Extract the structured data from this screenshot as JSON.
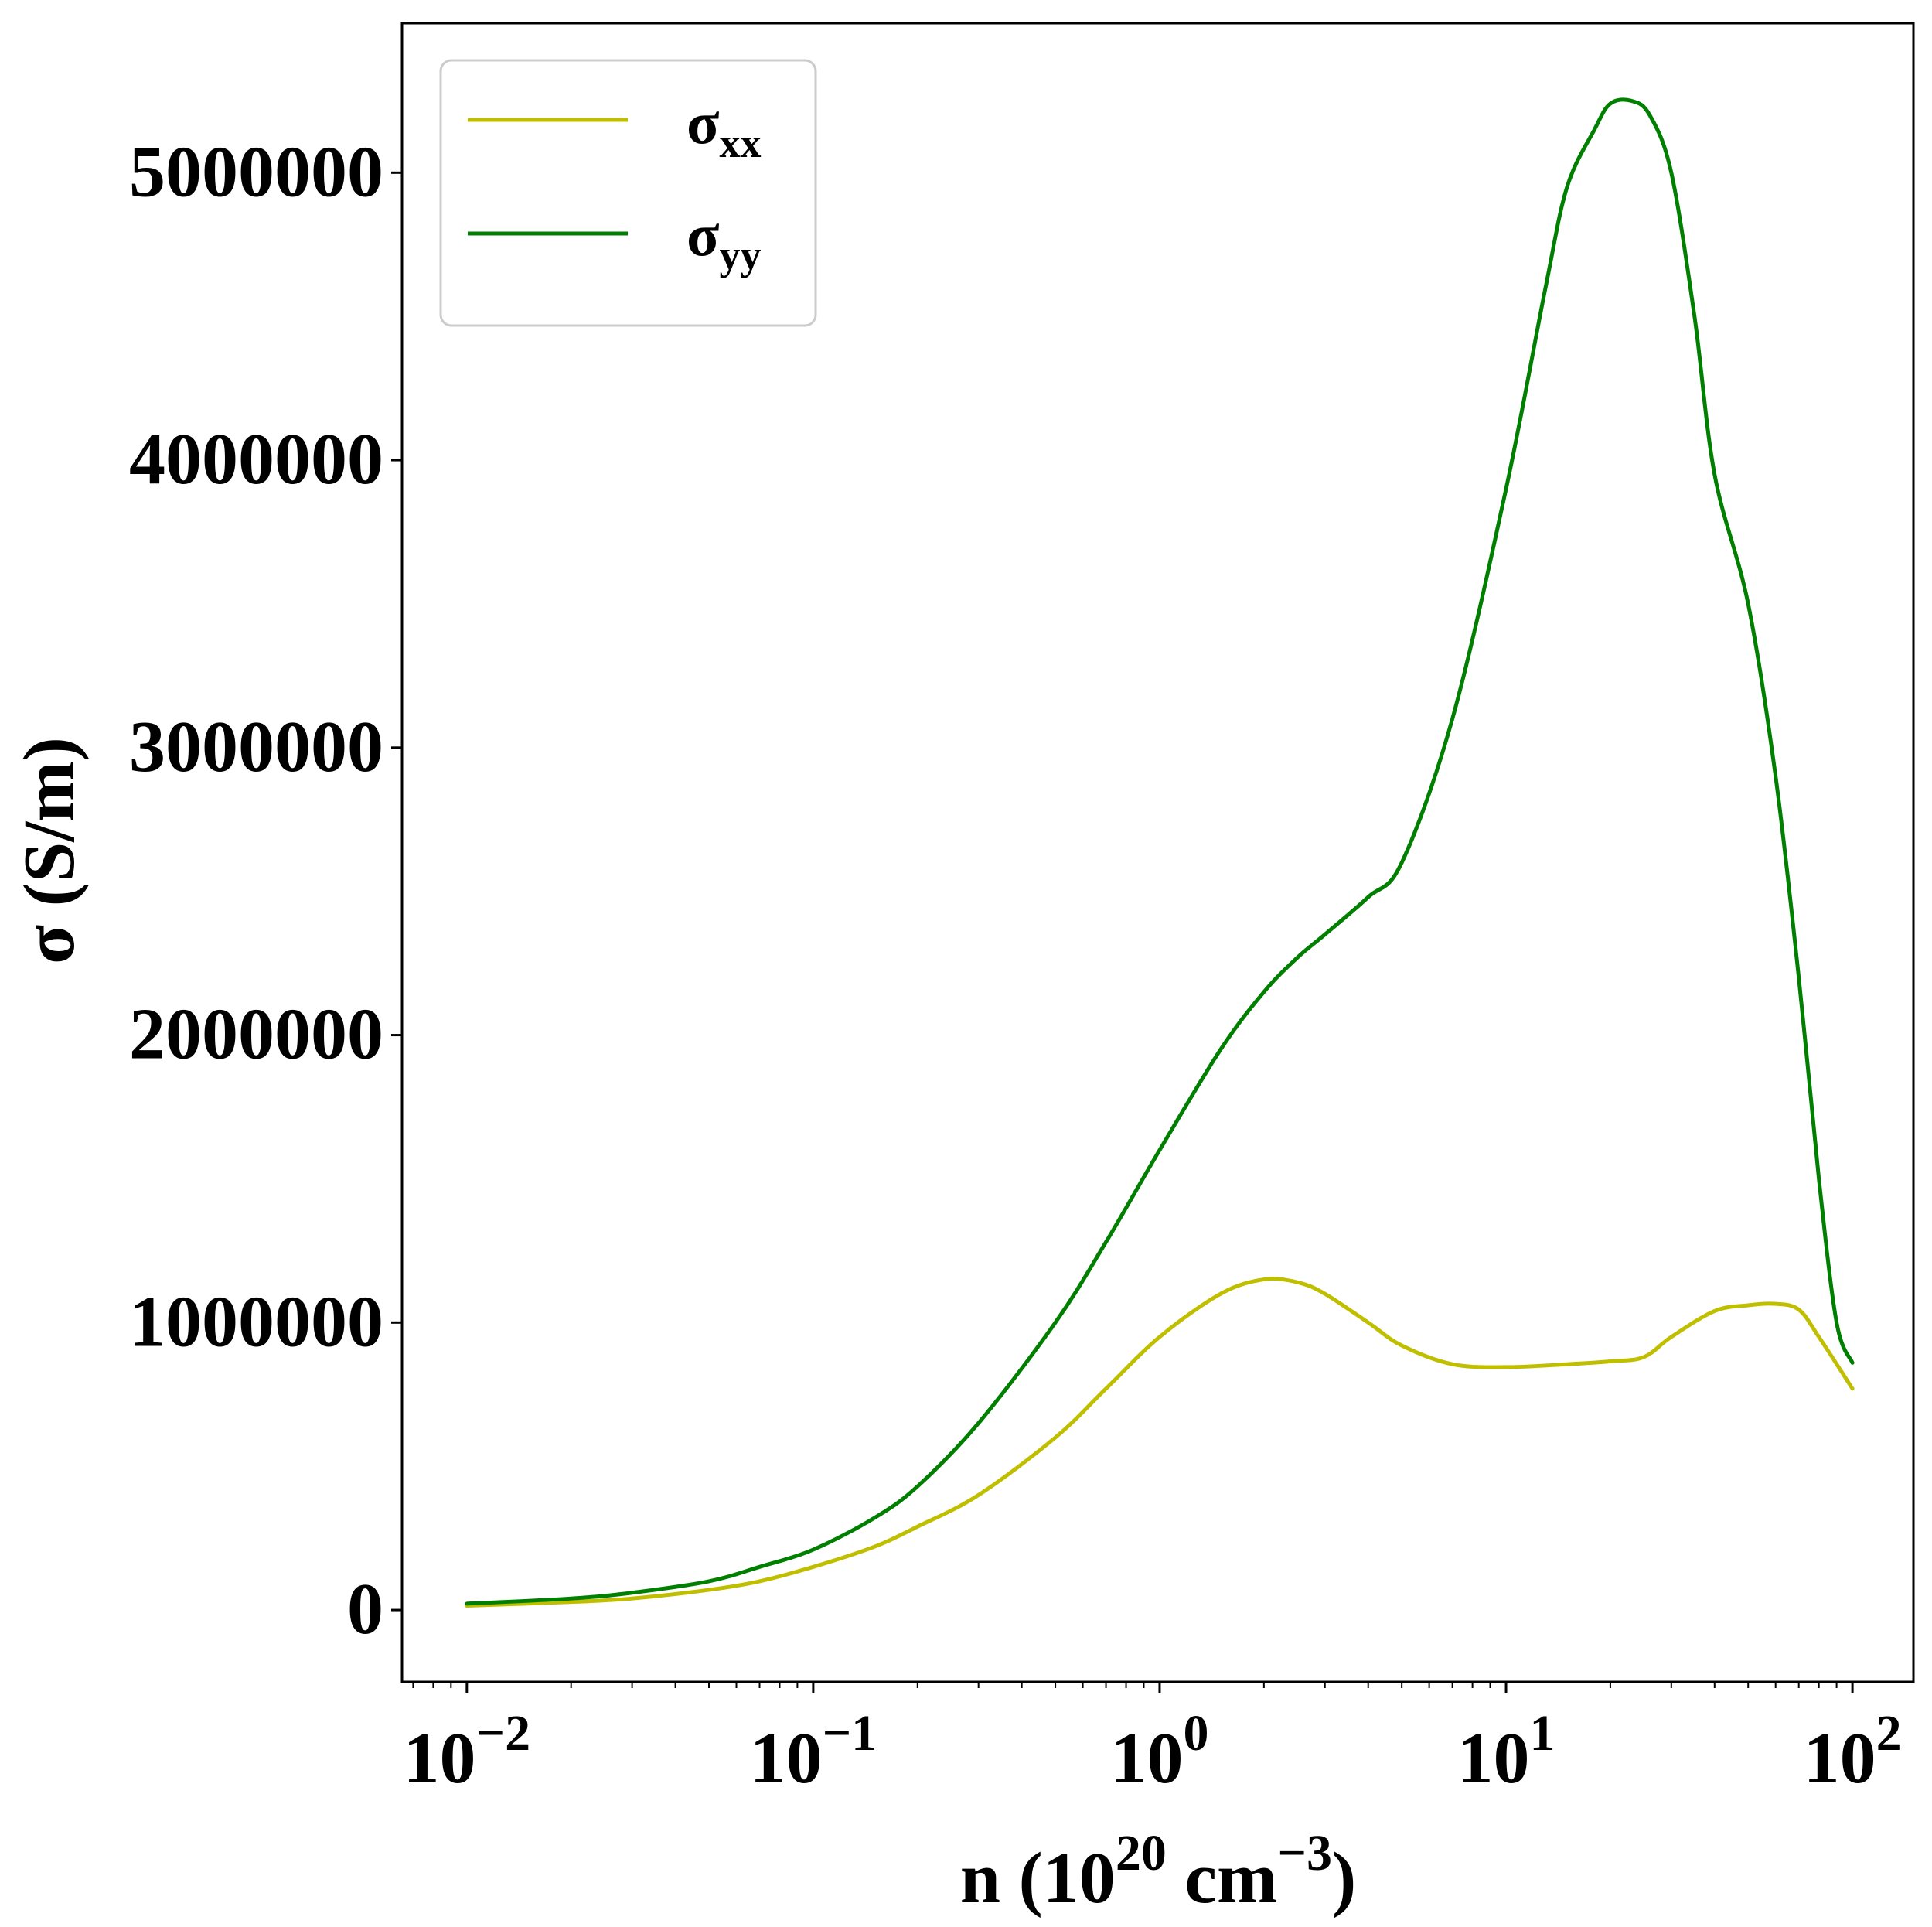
{
  "chart_data": {
    "type": "line",
    "xscale": "log",
    "xlim": [
      0.0065,
      150
    ],
    "ylim": [
      -250000,
      5520000
    ],
    "xlabel": "n (10^20 cm^-3)",
    "xlabel_parts": {
      "pre": "n (10",
      "exp1": "20",
      "mid": " cm",
      "exp2": "−3",
      "post": ")"
    },
    "ylabel": "σ (S/m)",
    "xticks": [
      {
        "value": 0.01,
        "base": "10",
        "exp": "−2"
      },
      {
        "value": 0.1,
        "base": "10",
        "exp": "−1"
      },
      {
        "value": 1,
        "base": "10",
        "exp": "0"
      },
      {
        "value": 10,
        "base": "10",
        "exp": "1"
      },
      {
        "value": 100,
        "base": "10",
        "exp": "2"
      }
    ],
    "yticks": [
      {
        "value": 0,
        "label": "0"
      },
      {
        "value": 1000000,
        "label": "1000000"
      },
      {
        "value": 2000000,
        "label": "2000000"
      },
      {
        "value": 3000000,
        "label": "3000000"
      },
      {
        "value": 4000000,
        "label": "4000000"
      },
      {
        "value": 5000000,
        "label": "5000000"
      }
    ],
    "legend": {
      "position": "top-left"
    },
    "grid": false,
    "series": [
      {
        "name": "σxx",
        "name_base": "σ",
        "name_sub": "xx",
        "color": "#bfbf00",
        "x": [
          0.01,
          0.02,
          0.03,
          0.05,
          0.07,
          0.1,
          0.15,
          0.2,
          0.3,
          0.5,
          0.7,
          1.0,
          1.5,
          2.0,
          2.5,
          3.0,
          4.0,
          5.0,
          7.0,
          10,
          15,
          20,
          25,
          30,
          40,
          50,
          60,
          70,
          80,
          100
        ],
        "y": [
          15000,
          28000,
          40000,
          70000,
          100000,
          150000,
          220000,
          290000,
          400000,
          600000,
          770000,
          950000,
          1100000,
          1150000,
          1140000,
          1100000,
          1000000,
          920000,
          855000,
          845000,
          855000,
          865000,
          880000,
          950000,
          1040000,
          1060000,
          1065000,
          1045000,
          950000,
          770000
        ]
      },
      {
        "name": "σyy",
        "name_base": "σ",
        "name_sub": "yy",
        "color": "#007f00",
        "x": [
          0.01,
          0.02,
          0.03,
          0.05,
          0.07,
          0.1,
          0.15,
          0.2,
          0.3,
          0.5,
          0.7,
          1.0,
          1.5,
          2.0,
          2.5,
          3.0,
          4.0,
          5.0,
          7.0,
          10,
          13,
          15,
          18,
          20,
          23,
          26,
          30,
          35,
          40,
          50,
          60,
          70,
          80,
          90,
          100
        ],
        "y": [
          22000,
          40000,
          60000,
          100000,
          150000,
          210000,
          320000,
          430000,
          650000,
          1000000,
          1280000,
          1600000,
          1950000,
          2150000,
          2270000,
          2350000,
          2480000,
          2600000,
          3100000,
          3900000,
          4600000,
          4950000,
          5150000,
          5240000,
          5250000,
          5200000,
          5000000,
          4500000,
          3950000,
          3500000,
          2900000,
          2200000,
          1500000,
          1000000,
          860000
        ]
      }
    ]
  }
}
